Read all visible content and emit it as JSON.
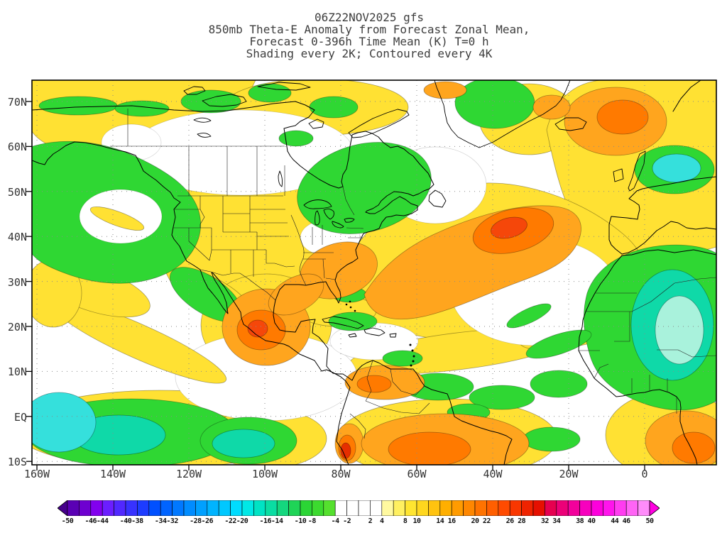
{
  "header": {
    "line1": "06Z22NOV2025 gfs",
    "line2": "850mb Theta-E Anomaly from Forecast Zonal Mean,",
    "line3": "Forecast 0-396h Time Mean (K) T=0 h",
    "line4": "Shading every 2K; Contoured every 4K"
  },
  "axes": {
    "lat_labels": [
      "70N",
      "60N",
      "50N",
      "40N",
      "30N",
      "20N",
      "10N",
      "EQ",
      "10S"
    ],
    "lon_labels": [
      "160W",
      "140W",
      "120W",
      "100W",
      "80W",
      "60W",
      "40W",
      "20W",
      "0"
    ]
  },
  "colorbar": {
    "min": -50,
    "max": 50,
    "step_K": 2,
    "tick_labels": [
      -50,
      -46,
      -44,
      -40,
      -38,
      -34,
      -32,
      -28,
      -26,
      -22,
      -20,
      -16,
      -14,
      -10,
      -8,
      -4,
      -2,
      2,
      4,
      8,
      10,
      14,
      16,
      20,
      22,
      26,
      28,
      32,
      34,
      38,
      40,
      44,
      46,
      50
    ],
    "left_arrow_color": "#46008C",
    "right_arrow_color": "#FF00E0",
    "segment_colors": [
      "#5A00B4",
      "#6E00D0",
      "#8200EE",
      "#6B1EFF",
      "#5128FF",
      "#3732FF",
      "#1D3CFF",
      "#0050FF",
      "#0064FF",
      "#0078FF",
      "#008CFF",
      "#00A0FF",
      "#00B4FF",
      "#00C8FF",
      "#00DCFF",
      "#00E8E6",
      "#00E3C4",
      "#0ADDA2",
      "#14D77E",
      "#1FD457",
      "#2BD535",
      "#3CDA2F",
      "#55E02E",
      "#FFFFFF",
      "#FFFFFF",
      "#FFFFFF",
      "#FFFFFF",
      "#FFF9A0",
      "#FFF060",
      "#FFE530",
      "#FFD71E",
      "#FFC30F",
      "#FFAF00",
      "#FF9B00",
      "#FF8700",
      "#FF7300",
      "#FF5F00",
      "#FF4B00",
      "#F93700",
      "#EF2300",
      "#E61000",
      "#E60050",
      "#EC0078",
      "#F2009B",
      "#F700BE",
      "#FC00DC",
      "#FF14EC",
      "#FF3CF0",
      "#FF64F5",
      "#FF8CFA"
    ]
  },
  "map_palette": {
    "yellow": "#FFE133",
    "green": "#2FD733",
    "teal": "#0FD9A8",
    "cyan": "#35E0DC",
    "pale_aqua": "#A9F2DC",
    "orange": "#FFA51E",
    "dark_orange": "#FF7A00",
    "red_orange": "#F5470A",
    "background": "#FFFFFF"
  },
  "chart_data": {
    "type": "heatmap",
    "subtype": "filled-contour-geographic-map",
    "model": "gfs",
    "init_time": "06Z22NOV2025",
    "field": "850mb Theta-E Anomaly from Forecast Zonal Mean",
    "forecast": "Forecast 0-396h Time Mean (K) T=0 h",
    "shading_interval_K": 2,
    "contour_interval_K": 4,
    "units": "K",
    "lat_range": [
      "10S",
      "~75N"
    ],
    "lon_range": [
      "160W",
      "~18E"
    ],
    "grid": "dotted graticule every 10 deg lat / 20 deg lon",
    "legend_position": "bottom horizontal colorbar with arrow ends",
    "colorbar_levels": [
      -50,
      -46,
      -44,
      -40,
      -38,
      -34,
      -32,
      -28,
      -26,
      -22,
      -20,
      -16,
      -14,
      -10,
      -8,
      -4,
      -2,
      2,
      4,
      8,
      10,
      14,
      16,
      20,
      22,
      26,
      28,
      32,
      34,
      38,
      40,
      44,
      46,
      50
    ],
    "features": [
      {
        "region": "Gulf of Mexico / SE United States into central North Atlantic ~35-45N",
        "sign": "positive",
        "approx_peak_K": "+16 to +20"
      },
      {
        "region": "western and central Mexico",
        "sign": "positive",
        "approx_peak_K": "+12 to +16"
      },
      {
        "region": "northern South America (Colombia/Venezuela)",
        "sign": "positive",
        "approx_peak_K": "+12 to +16"
      },
      {
        "region": "Peru/Ecuador coast near 5S",
        "sign": "positive",
        "approx_peak_K": "+20 to +26"
      },
      {
        "region": "interior tropical South America (bottom center)",
        "sign": "positive",
        "approx_peak_K": "+10 to +16"
      },
      {
        "region": "NE North Atlantic / Norwegian Sea (top right)",
        "sign": "positive",
        "approx_peak_K": "+10 to +14"
      },
      {
        "region": "Gulf of Guinea / equatorial West Africa",
        "sign": "positive",
        "approx_peak_K": "+10 to +14"
      },
      {
        "region": "NE Pacific 40-55N",
        "sign": "negative",
        "approx_peak_K": "-6 to -10"
      },
      {
        "region": "Great Lakes / Quebec / Labrador",
        "sign": "negative",
        "approx_peak_K": "-4 to -8"
      },
      {
        "region": "Sahara / West Africa interior",
        "sign": "negative",
        "approx_peak_K": "-10 to -16"
      },
      {
        "region": "equatorial eastern Pacific",
        "sign": "negative",
        "approx_peak_K": "-8 to -14"
      },
      {
        "region": "broad mid-latitude oceans",
        "sign": "positive",
        "approx_peak_K": "+4 to +8"
      }
    ]
  }
}
